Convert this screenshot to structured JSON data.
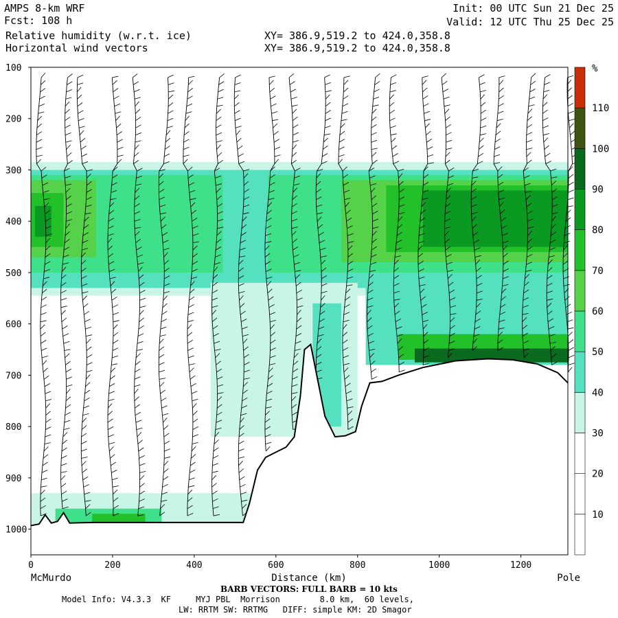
{
  "header": {
    "model": "AMPS 8-km WRF",
    "forecast": "Fcst: 108 h",
    "init": "Init: 00 UTC Sun 21 Dec 25",
    "valid": "Valid: 12 UTC Thu 25 Dec 25",
    "field1": "Relative humidity (w.r.t. ice)",
    "field2": "Horizontal wind vectors",
    "xy1": "XY= 386.9,519.2 to 424.0,358.8",
    "xy2": "XY= 386.9,519.2 to 424.0,358.8"
  },
  "footer": {
    "barb_note": "BARB VECTORS: FULL BARB = 10 kts",
    "model_info": "Model Info: V4.3.3  KF     MYJ PBL  Morrison        8.0 km,  60 levels,",
    "physics": "LW: RRTM SW: RRTMG   DIFF: simple KM: 2D Smagor"
  },
  "chart_data": {
    "type": "heatmap",
    "xlabel": "Distance (km)",
    "x_left_label": "McMurdo",
    "x_right_label": "Pole",
    "xlim": [
      0,
      1315
    ],
    "ylim": [
      1050,
      100
    ],
    "x_ticks": [
      0,
      200,
      400,
      600,
      800,
      1000,
      1200
    ],
    "y_ticks": [
      100,
      200,
      300,
      400,
      500,
      600,
      700,
      800,
      900,
      1000
    ],
    "colorbar": {
      "unit": "%",
      "levels": [
        10,
        20,
        30,
        40,
        50,
        60,
        70,
        80,
        90,
        100,
        110
      ],
      "colors": [
        "#ffffff",
        "#ffffff",
        "#ffffff",
        "#c8f5e6",
        "#55e0c0",
        "#3ee08a",
        "#55d24a",
        "#22c12a",
        "#0a9a22",
        "#0a6a1e",
        "#3e5410",
        "#c82e08"
      ]
    },
    "rh_colors": {
      "30": "#c8f5e6",
      "40": "#55e0c0",
      "50": "#3ee08a",
      "60": "#55d24a",
      "70": "#22c12a",
      "80": "#0a9a22",
      "90": "#0a6a1e",
      "100": "#3e5410",
      "110": "#c82e08"
    },
    "terrain": [
      [
        0,
        993
      ],
      [
        20,
        990
      ],
      [
        35,
        972
      ],
      [
        50,
        988
      ],
      [
        65,
        985
      ],
      [
        80,
        968
      ],
      [
        95,
        988
      ],
      [
        150,
        987
      ],
      [
        300,
        987
      ],
      [
        520,
        987
      ],
      [
        535,
        950
      ],
      [
        555,
        885
      ],
      [
        575,
        860
      ],
      [
        600,
        850
      ],
      [
        625,
        840
      ],
      [
        645,
        820
      ],
      [
        660,
        740
      ],
      [
        670,
        650
      ],
      [
        685,
        640
      ],
      [
        700,
        700
      ],
      [
        720,
        780
      ],
      [
        745,
        820
      ],
      [
        770,
        818
      ],
      [
        795,
        810
      ],
      [
        810,
        760
      ],
      [
        830,
        715
      ],
      [
        860,
        712
      ],
      [
        900,
        700
      ],
      [
        960,
        685
      ],
      [
        1040,
        672
      ],
      [
        1120,
        668
      ],
      [
        1180,
        670
      ],
      [
        1240,
        678
      ],
      [
        1290,
        695
      ],
      [
        1315,
        715
      ]
    ],
    "rh_bands": [
      {
        "level": 30,
        "x": [
          0,
          1315
        ],
        "p": [
          285,
          545
        ]
      },
      {
        "level": 40,
        "x": [
          0,
          1315
        ],
        "p": [
          300,
          530
        ]
      },
      {
        "level": 50,
        "x": [
          0,
          470
        ],
        "p": [
          310,
          500
        ]
      },
      {
        "level": 60,
        "x": [
          0,
          160
        ],
        "p": [
          320,
          470
        ]
      },
      {
        "level": 70,
        "x": [
          0,
          80
        ],
        "p": [
          345,
          450
        ]
      },
      {
        "level": 80,
        "x": [
          10,
          50
        ],
        "p": [
          370,
          430
        ]
      },
      {
        "level": 50,
        "x": [
          580,
          1315
        ],
        "p": [
          310,
          500
        ]
      },
      {
        "level": 60,
        "x": [
          760,
          1315
        ],
        "p": [
          320,
          480
        ]
      },
      {
        "level": 70,
        "x": [
          870,
          1315
        ],
        "p": [
          330,
          460
        ]
      },
      {
        "level": 80,
        "x": [
          960,
          1315
        ],
        "p": [
          340,
          450
        ]
      },
      {
        "level": 30,
        "x": [
          440,
          800
        ],
        "p": [
          520,
          820
        ]
      },
      {
        "level": 40,
        "x": [
          690,
          760
        ],
        "p": [
          560,
          800
        ]
      },
      {
        "level": 40,
        "x": [
          820,
          1315
        ],
        "p": [
          520,
          680
        ]
      },
      {
        "level": 70,
        "x": [
          900,
          1315
        ],
        "p": [
          620,
          670
        ]
      },
      {
        "level": 90,
        "x": [
          940,
          1315
        ],
        "p": [
          648,
          675
        ]
      },
      {
        "level": 30,
        "x": [
          0,
          540
        ],
        "p": [
          930,
          990
        ]
      },
      {
        "level": 50,
        "x": [
          60,
          320
        ],
        "p": [
          960,
          990
        ]
      },
      {
        "level": 70,
        "x": [
          150,
          280
        ],
        "p": [
          970,
          990
        ]
      }
    ],
    "barb_columns_km": [
      30,
      80,
      130,
      195,
      260,
      320,
      390,
      450,
      515,
      580,
      645,
      705,
      770,
      830,
      895,
      955,
      1020,
      1085,
      1150,
      1210,
      1270,
      1310
    ]
  }
}
